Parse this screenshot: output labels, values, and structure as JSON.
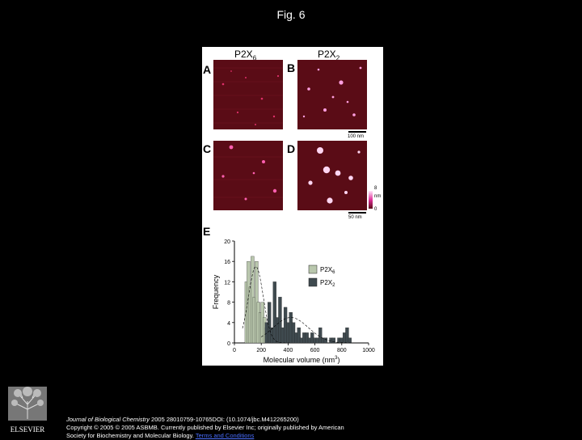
{
  "slide": {
    "title": "Fig. 6"
  },
  "figure": {
    "columns": [
      "P2X",
      "P2X"
    ],
    "column_subs": [
      "6",
      "2"
    ],
    "panels": [
      "A",
      "B",
      "C",
      "D",
      "E"
    ],
    "scale_top": "100 nm",
    "scale_bottom": "50 nm",
    "height_scale_top": "8",
    "height_scale_unit": "nm",
    "height_scale_bottom": "0",
    "colors": {
      "afm_background": "#5a0c16",
      "p2x6_bars": "#b9c7ad",
      "p2x2_bars": "#3f4a4f"
    }
  },
  "chart_data": {
    "type": "bar",
    "xlabel": "Molecular volume (nm",
    "xlabel_sup": "3",
    "xlabel_close": ")",
    "ylabel": "Frequency",
    "xlim": [
      0,
      1000
    ],
    "ylim": [
      0,
      20
    ],
    "xticks": [
      "0",
      "200",
      "400",
      "600",
      "800",
      "1000"
    ],
    "yticks": [
      "0",
      "4",
      "8",
      "12",
      "16",
      "20"
    ],
    "legend": [
      "P2X",
      "P2X"
    ],
    "legend_subs": [
      "6",
      "2"
    ],
    "legend_position": "right",
    "series": [
      {
        "name": "P2X6",
        "bin_centers": [
          90,
          105,
          120,
          135,
          150,
          165,
          180,
          195,
          210,
          225,
          240,
          255
        ],
        "values": [
          12,
          16,
          11,
          17,
          9,
          16,
          8,
          6,
          8,
          5,
          3,
          2
        ]
      },
      {
        "name": "P2X2",
        "bin_centers": [
          240,
          260,
          280,
          300,
          320,
          340,
          360,
          380,
          400,
          420,
          440,
          460,
          480,
          500,
          520,
          540,
          560,
          580,
          600,
          620,
          640,
          660,
          680,
          700,
          720,
          740,
          760,
          780,
          800,
          820,
          840,
          860
        ],
        "values": [
          4,
          8,
          3,
          12,
          5,
          9,
          3,
          7,
          4,
          6,
          4,
          2,
          3,
          1,
          2,
          2,
          1,
          2,
          1,
          1,
          3,
          1,
          1,
          0,
          1,
          1,
          0,
          1,
          1,
          2,
          3,
          1
        ]
      }
    ]
  },
  "footer": {
    "line1_journal": "Journal of Biological Chemistry",
    "line1_rest": " 2005 28010759-10765DOI: (10.1074/jbc.M412265200)",
    "line2": "Copyright © 2005 © 2005 ASBMB. Currently published by Elsevier Inc; originally published by American",
    "line3_text": "Society for Biochemistry and Molecular Biology.",
    "line3_link": "Terms and Conditions"
  },
  "logo": {
    "text": "ELSEVIER"
  }
}
